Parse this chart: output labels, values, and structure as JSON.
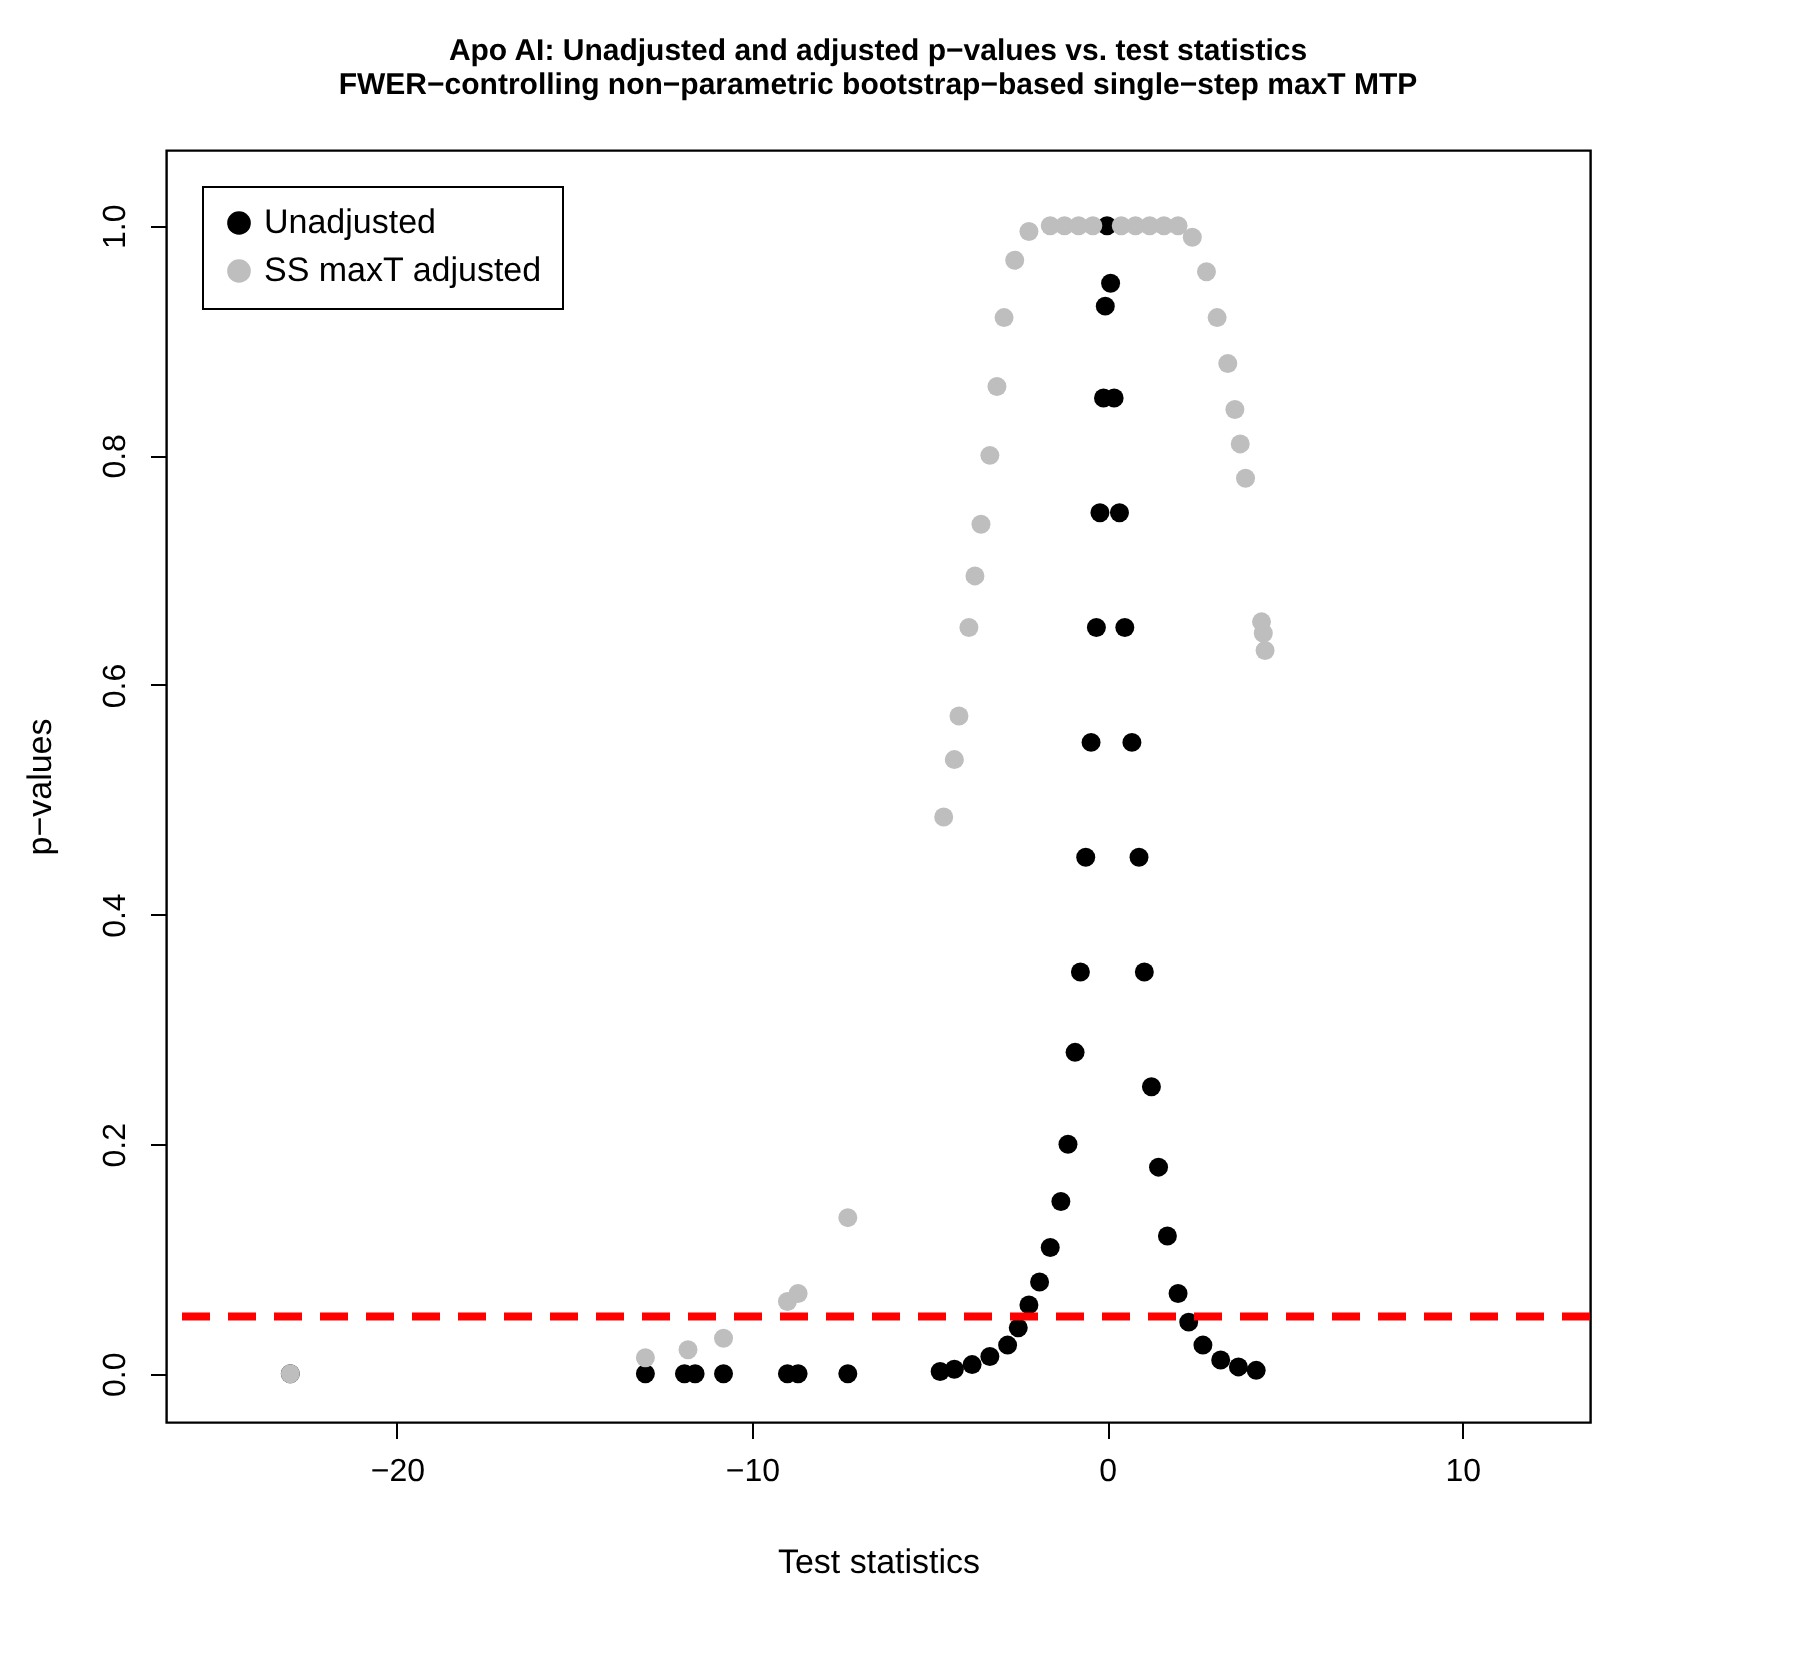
{
  "chart_data": {
    "type": "scatter",
    "title": "Apo AI: Unadjusted and adjusted p−values vs. test statistics",
    "subtitle": "FWER−controlling non−parametric bootstrap−based single−step maxT MTP",
    "xlabel": "Test statistics",
    "ylabel": "p−values",
    "xlim": [
      -26.5,
      13.6
    ],
    "ylim": [
      -0.042,
      1.066
    ],
    "xticks": [
      -20,
      -10,
      0,
      10
    ],
    "yticks": [
      {
        "value": 0,
        "label": "0.0"
      },
      {
        "value": 0.2,
        "label": "0.2"
      },
      {
        "value": 0.4,
        "label": "0.4"
      },
      {
        "value": 0.6,
        "label": "0.6"
      },
      {
        "value": 0.8,
        "label": "0.8"
      },
      {
        "value": 1,
        "label": "1.0"
      }
    ],
    "grid": false,
    "legend": "top left",
    "marker": "circle",
    "series": [
      {
        "name": "Unadjusted",
        "color": "#000000",
        "x": [
          -23,
          -13.0,
          -11.9,
          -11.6,
          -10.8,
          -9.0,
          -8.7,
          -7.3,
          -4.7,
          -4.3,
          -3.8,
          -3.3,
          -2.8,
          -2.5,
          -2.2,
          -1.9,
          -1.6,
          -1.3,
          -1.1,
          -0.9,
          -0.75,
          -0.6,
          -0.45,
          -0.3,
          -0.2,
          -0.1,
          -0.05,
          0,
          0.1,
          0.2,
          0.35,
          0.5,
          0.7,
          0.9,
          1.05,
          1.25,
          1.45,
          1.7,
          2.0,
          2.3,
          2.7,
          3.2,
          3.7,
          4.2
        ],
        "values": [
          0.0,
          0.0,
          0.0,
          0.0,
          0.0,
          0.0,
          0.0,
          0.0,
          0.002,
          0.004,
          0.008,
          0.015,
          0.025,
          0.04,
          0.06,
          0.08,
          0.11,
          0.15,
          0.2,
          0.28,
          0.35,
          0.45,
          0.55,
          0.65,
          0.75,
          0.85,
          0.93,
          1.0,
          0.95,
          0.85,
          0.75,
          0.65,
          0.55,
          0.45,
          0.35,
          0.25,
          0.18,
          0.12,
          0.07,
          0.045,
          0.025,
          0.012,
          0.006,
          0.003
        ]
      },
      {
        "name": "SS maxT adjusted",
        "color": "#bebebe",
        "x": [
          -23,
          -13.0,
          -11.8,
          -10.8,
          -9.0,
          -8.7,
          -7.3,
          -4.6,
          -4.3,
          -4.17,
          -3.89,
          -3.72,
          -3.55,
          -3.3,
          -3.1,
          -2.9,
          -2.6,
          -2.2,
          -1.6,
          -1.2,
          -0.8,
          -0.4,
          0.4,
          0.8,
          1.2,
          1.6,
          2.0,
          2.4,
          2.8,
          3.1,
          3.4,
          3.6,
          3.75,
          3.9,
          4.35,
          4.4,
          4.45
        ],
        "values": [
          0.0,
          0.014,
          0.021,
          0.031,
          0.063,
          0.07,
          0.136,
          0.485,
          0.535,
          0.573,
          0.65,
          0.695,
          0.74,
          0.8,
          0.86,
          0.92,
          0.97,
          0.995,
          1.0,
          1.0,
          1.0,
          1.0,
          1.0,
          1.0,
          1.0,
          1.0,
          1.0,
          0.99,
          0.96,
          0.92,
          0.88,
          0.84,
          0.81,
          0.78,
          0.655,
          0.645,
          0.63
        ]
      }
    ],
    "ref_lines": [
      {
        "axis": "y",
        "value": 0.05,
        "color": "#ff0000",
        "line_style": "dashed"
      }
    ]
  }
}
